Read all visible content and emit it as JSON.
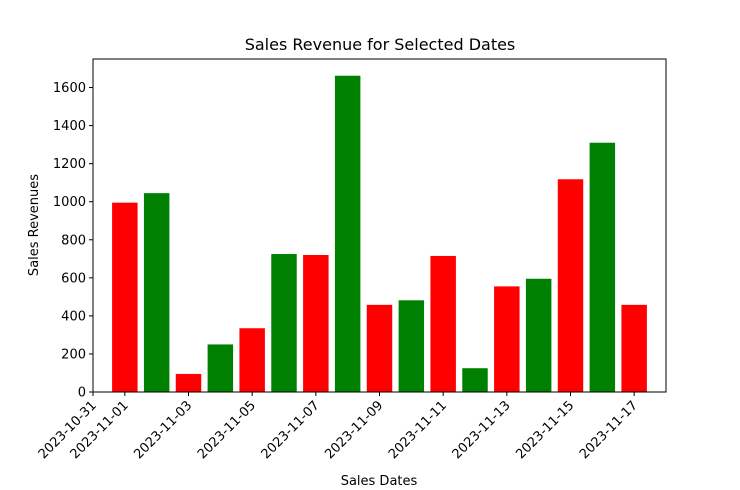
{
  "chart_data": {
    "type": "bar",
    "title": "Sales Revenue for Selected Dates",
    "xlabel": "Sales Dates",
    "ylabel": "Sales Revenues",
    "categories": [
      "2023-11-01",
      "2023-11-02",
      "2023-11-03",
      "2023-11-04",
      "2023-11-05",
      "2023-11-06",
      "2023-11-07",
      "2023-11-08",
      "2023-11-09",
      "2023-11-10",
      "2023-11-11",
      "2023-11-12",
      "2023-11-13",
      "2023-11-14",
      "2023-11-15",
      "2023-11-16",
      "2023-11-17"
    ],
    "values": [
      995,
      1045,
      95,
      250,
      335,
      725,
      720,
      1662,
      458,
      482,
      715,
      125,
      555,
      595,
      1118,
      1310,
      458
    ],
    "colors": [
      "#ff0000",
      "#008000",
      "#ff0000",
      "#008000",
      "#ff0000",
      "#008000",
      "#ff0000",
      "#008000",
      "#ff0000",
      "#008000",
      "#ff0000",
      "#008000",
      "#ff0000",
      "#008000",
      "#ff0000",
      "#008000",
      "#ff0000"
    ],
    "xticks": [
      "2023-10-31",
      "2023-11-01",
      "2023-11-03",
      "2023-11-05",
      "2023-11-07",
      "2023-11-09",
      "2023-11-11",
      "2023-11-13",
      "2023-11-15",
      "2023-11-17"
    ],
    "xlim": [
      "2023-10-31",
      "2023-11-18"
    ],
    "yticks": [
      0,
      200,
      400,
      600,
      800,
      1000,
      1200,
      1400,
      1600
    ],
    "ylim": [
      0,
      1750
    ],
    "grid": false,
    "legend": "none"
  }
}
